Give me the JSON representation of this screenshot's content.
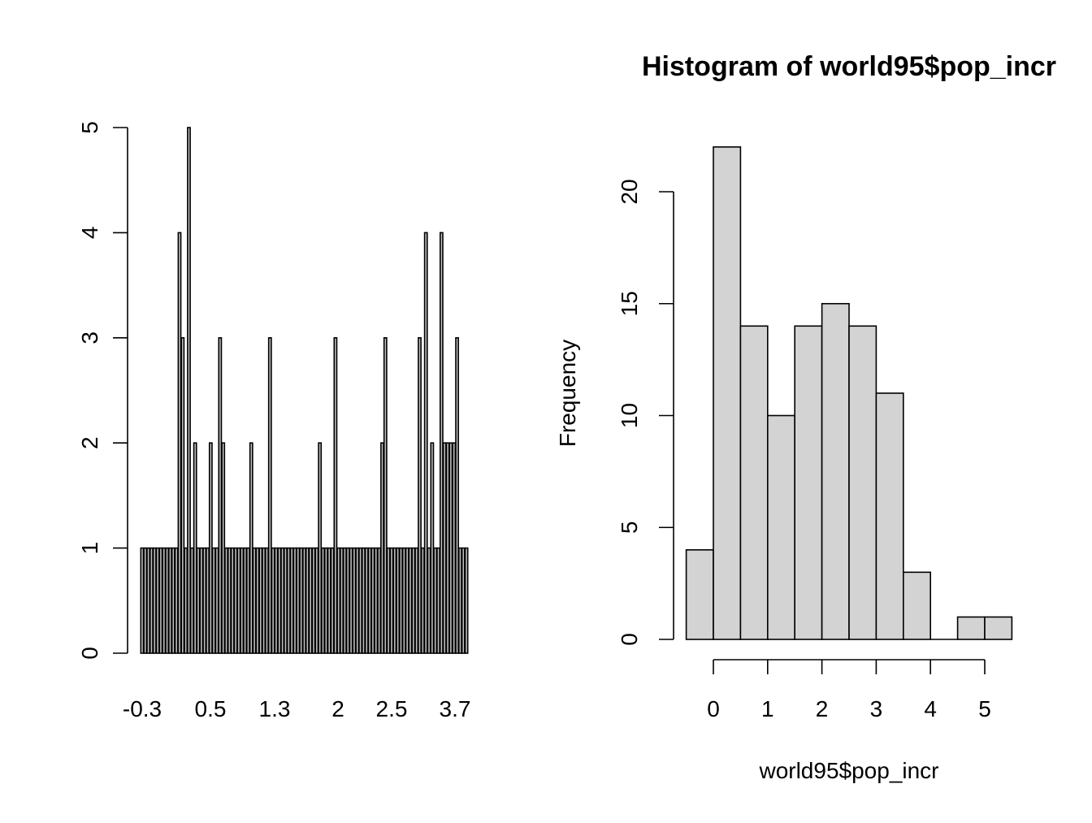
{
  "chart_data": [
    {
      "type": "bar",
      "title": "",
      "xlabel": "",
      "ylabel": "",
      "ylim": [
        0,
        5
      ],
      "yticks": [
        0,
        1,
        2,
        3,
        4,
        5
      ],
      "xtick_labels": [
        "-0.3",
        "0.5",
        "1.3",
        "2",
        "2.5",
        "3.7"
      ],
      "bar_fill": "#bebebe",
      "values": [
        1,
        1,
        1,
        1,
        1,
        1,
        1,
        1,
        1,
        1,
        1,
        1,
        4,
        3,
        1,
        5,
        1,
        2,
        1,
        1,
        1,
        1,
        2,
        1,
        1,
        3,
        2,
        1,
        1,
        1,
        1,
        1,
        1,
        1,
        1,
        2,
        1,
        1,
        1,
        1,
        1,
        3,
        1,
        1,
        1,
        1,
        1,
        1,
        1,
        1,
        1,
        1,
        1,
        1,
        1,
        1,
        1,
        2,
        1,
        1,
        1,
        1,
        3,
        1,
        1,
        1,
        1,
        1,
        1,
        1,
        1,
        1,
        1,
        1,
        1,
        1,
        1,
        2,
        3,
        1,
        1,
        1,
        1,
        1,
        1,
        1,
        1,
        1,
        1,
        3,
        1,
        4,
        1,
        2,
        1,
        1,
        4,
        2,
        2,
        2,
        2,
        3,
        1,
        1,
        1
      ]
    },
    {
      "type": "bar",
      "title": "Histogram of world95$pop_incr",
      "xlabel": "world95$pop_incr",
      "ylabel": "Frequency",
      "bin_edges": [
        -0.5,
        0,
        0.5,
        1,
        1.5,
        2,
        2.5,
        3,
        3.5,
        4,
        4.5,
        5,
        5.5
      ],
      "values": [
        4,
        22,
        14,
        10,
        14,
        15,
        14,
        11,
        3,
        0,
        1,
        1
      ],
      "xticks": [
        0,
        1,
        2,
        3,
        4,
        5
      ],
      "yticks": [
        0,
        5,
        10,
        15,
        20
      ],
      "ylim": [
        0,
        22
      ],
      "bar_fill": "#d3d3d3"
    }
  ]
}
